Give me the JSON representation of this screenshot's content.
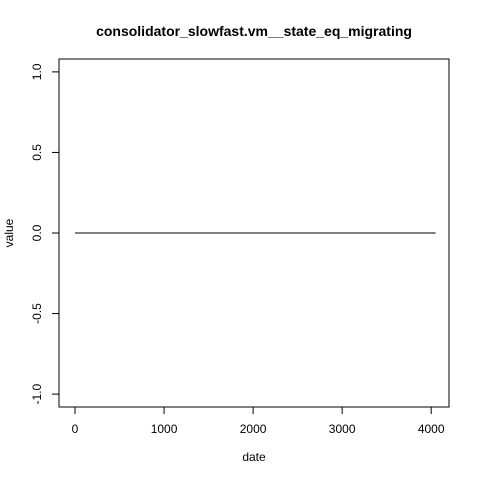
{
  "chart_data": {
    "type": "line",
    "title": "consolidator_slowfast.vm__state_eq_migrating",
    "xlabel": "date",
    "ylabel": "value",
    "xlim": [
      -180,
      4200
    ],
    "ylim": [
      -1.08,
      1.08
    ],
    "x_ticks": [
      0,
      1000,
      2000,
      3000,
      4000
    ],
    "y_ticks": [
      -1.0,
      -0.5,
      0.0,
      0.5,
      1.0
    ],
    "x_tick_labels": [
      "0",
      "1000",
      "2000",
      "3000",
      "4000"
    ],
    "y_tick_labels": [
      "-1.0",
      "-0.5",
      "0.0",
      "0.5",
      "1.0"
    ],
    "grid": false,
    "series": [
      {
        "color": "#000000",
        "x": [
          0,
          4050
        ],
        "y": [
          0,
          0
        ]
      }
    ]
  }
}
